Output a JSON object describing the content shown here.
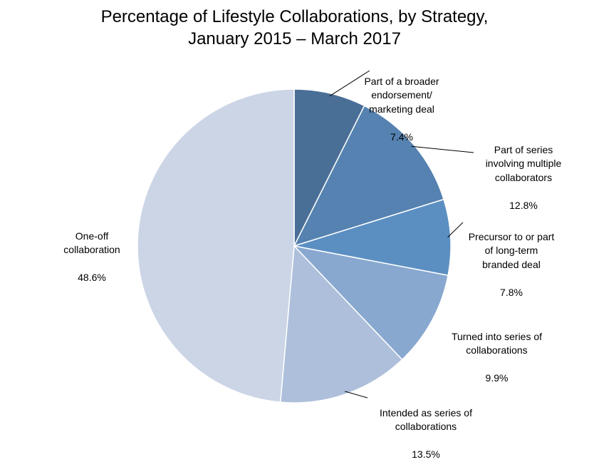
{
  "chart_data": {
    "type": "pie",
    "title": "Percentage of Lifestyle Collaborations, by Strategy,",
    "subtitle": "January 2015 – March 2017",
    "slices": [
      {
        "label": "Part of a broader endorsement/ marketing deal",
        "value": 7.4,
        "value_label": "7.4%",
        "color": "#4a6f97"
      },
      {
        "label": "Part of series involving multiple collaborators",
        "value": 12.8,
        "value_label": "12.8%",
        "color": "#5582b0"
      },
      {
        "label": "Precursor to or part of long-term branded deal",
        "value": 7.8,
        "value_label": "7.8%",
        "color": "#5b8fc2"
      },
      {
        "label": "Turned into series of collaborations",
        "value": 9.9,
        "value_label": "9.9%",
        "color": "#88a8cf"
      },
      {
        "label": "Intended as series of collaborations",
        "value": 13.5,
        "value_label": "13.5%",
        "color": "#adbfdb"
      },
      {
        "label": "One-off collaboration",
        "value": 48.6,
        "value_label": "48.6%",
        "color": "#cbd5e6"
      }
    ],
    "legend": "none"
  }
}
